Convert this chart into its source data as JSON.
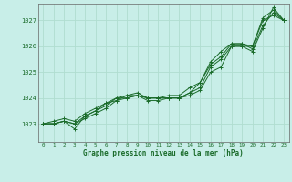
{
  "title": "Graphe pression niveau de la mer (hPa)",
  "background_color": "#c8eee8",
  "grid_color": "#b0ddd0",
  "line_color": "#1a6b2a",
  "marker_color": "#1a6b2a",
  "xlim": [
    -0.5,
    23.5
  ],
  "ylim": [
    1022.3,
    1027.65
  ],
  "yticks": [
    1023,
    1024,
    1025,
    1026,
    1027
  ],
  "xticks": [
    0,
    1,
    2,
    3,
    4,
    5,
    6,
    7,
    8,
    9,
    10,
    11,
    12,
    13,
    14,
    15,
    16,
    17,
    18,
    19,
    20,
    21,
    22,
    23
  ],
  "series": [
    [
      1023.0,
      1023.0,
      1023.1,
      1023.0,
      1023.2,
      1023.4,
      1023.6,
      1023.9,
      1024.0,
      1024.1,
      1023.9,
      1023.9,
      1024.0,
      1024.0,
      1024.1,
      1024.3,
      1025.0,
      1025.2,
      1026.0,
      1026.0,
      1026.0,
      1027.0,
      1027.2,
      1027.0
    ],
    [
      1023.0,
      1023.0,
      1023.1,
      1022.8,
      1023.3,
      1023.5,
      1023.8,
      1023.9,
      1024.1,
      1024.1,
      1024.0,
      1024.0,
      1024.0,
      1024.0,
      1024.2,
      1024.4,
      1025.2,
      1025.5,
      1026.0,
      1026.0,
      1025.8,
      1026.7,
      1027.5,
      1027.0
    ],
    [
      1023.0,
      1023.1,
      1023.2,
      1023.1,
      1023.4,
      1023.6,
      1023.8,
      1024.0,
      1024.1,
      1024.2,
      1024.0,
      1024.0,
      1024.1,
      1024.1,
      1024.4,
      1024.6,
      1025.4,
      1025.8,
      1026.1,
      1026.1,
      1026.0,
      1027.1,
      1027.4,
      1027.0
    ],
    [
      1023.0,
      1023.0,
      1023.1,
      1023.0,
      1023.3,
      1023.5,
      1023.7,
      1024.0,
      1024.0,
      1024.1,
      1024.0,
      1024.0,
      1024.0,
      1024.0,
      1024.2,
      1024.6,
      1025.3,
      1025.6,
      1026.1,
      1026.1,
      1025.9,
      1026.8,
      1027.3,
      1027.0
    ]
  ]
}
